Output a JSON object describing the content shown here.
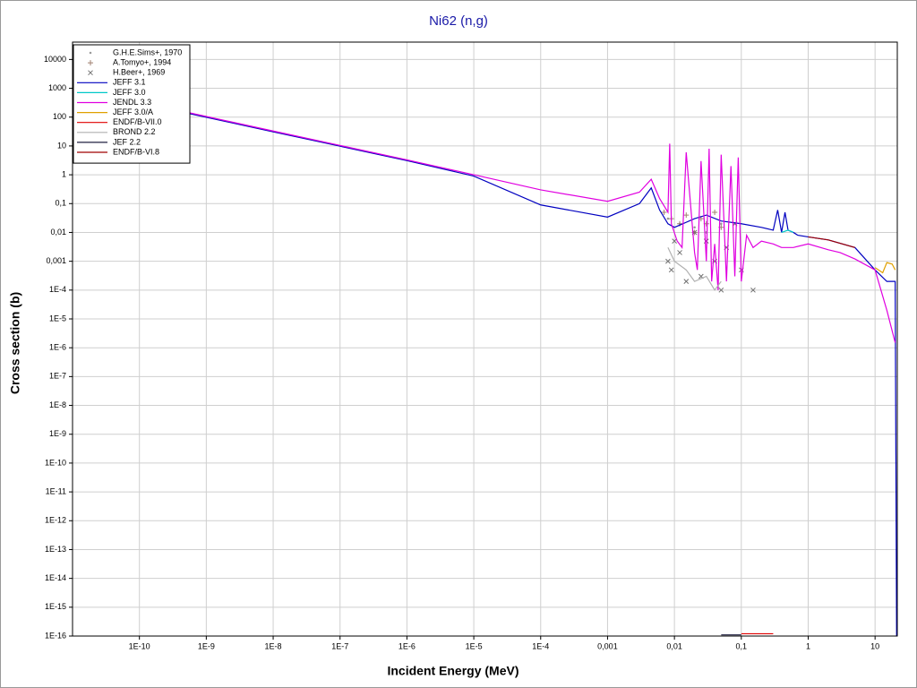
{
  "chart_data": {
    "type": "line",
    "title": "Ni62 (n,g)",
    "x_label": "Incident Energy (MeV)",
    "y_label": "Cross section (b)",
    "log_x": true,
    "log_y": true,
    "grid": true,
    "legend": "upper left",
    "xlim": [
      1e-11,
      21.5
    ],
    "ylim": [
      1e-16,
      40000
    ],
    "xticks": [
      {
        "value": 1e-10,
        "label": "1E-10"
      },
      {
        "value": 1e-09,
        "label": "1E-9"
      },
      {
        "value": 1e-08,
        "label": "1E-8"
      },
      {
        "value": 1e-07,
        "label": "1E-7"
      },
      {
        "value": 1e-06,
        "label": "1E-6"
      },
      {
        "value": 1e-05,
        "label": "1E-5"
      },
      {
        "value": 0.0001,
        "label": "1E-4"
      },
      {
        "value": 0.001,
        "label": "0,001"
      },
      {
        "value": 0.01,
        "label": "0,01"
      },
      {
        "value": 0.1,
        "label": "0,1"
      },
      1,
      10
    ],
    "yticks": [
      10000,
      1000,
      100,
      10,
      1,
      {
        "value": 0.1,
        "label": "0,1"
      },
      {
        "value": 0.01,
        "label": "0,01"
      },
      {
        "value": 0.001,
        "label": "0,001"
      },
      {
        "value": 0.0001,
        "label": "1E-4"
      },
      {
        "value": 1e-05,
        "label": "1E-5"
      },
      {
        "value": 1e-06,
        "label": "1E-6"
      },
      {
        "value": 1e-07,
        "label": "1E-7"
      },
      {
        "value": 1e-08,
        "label": "1E-8"
      },
      {
        "value": 1e-09,
        "label": "1E-9"
      },
      {
        "value": 1e-10,
        "label": "1E-10"
      },
      {
        "value": 1e-11,
        "label": "1E-11"
      },
      {
        "value": 1e-12,
        "label": "1E-12"
      },
      {
        "value": 1e-13,
        "label": "1E-13"
      },
      {
        "value": 1e-14,
        "label": "1E-14"
      },
      {
        "value": 1e-15,
        "label": "1E-15"
      },
      {
        "value": 1e-16,
        "label": "1E-16"
      }
    ],
    "series": [
      {
        "name": "G.H.E.Sims+, 1970",
        "color": "#999999",
        "marker": "dot",
        "x": [
          0.008,
          0.012,
          0.02,
          0.03,
          0.05
        ],
        "values": [
          0.03,
          0.02,
          0.015,
          0.01,
          0.02
        ]
      },
      {
        "name": "A.Tomyo+, 1994",
        "color": "#a08070",
        "marker": "plus",
        "x": [
          0.007,
          0.009,
          0.012,
          0.015,
          0.02,
          0.025,
          0.03,
          0.04,
          0.05
        ],
        "values": [
          0.05,
          0.03,
          0.02,
          0.04,
          0.01,
          0.03,
          0.02,
          0.05,
          0.015
        ]
      },
      {
        "name": "H.Beer+, 1969",
        "color": "#707070",
        "marker": "cross",
        "x": [
          0.008,
          0.009,
          0.01,
          0.012,
          0.015,
          0.02,
          0.025,
          0.03,
          0.04,
          0.05,
          0.06,
          0.08,
          0.1,
          0.15
        ],
        "values": [
          0.001,
          0.0005,
          0.005,
          0.002,
          0.0002,
          0.01,
          0.0003,
          0.005,
          0.001,
          0.0001,
          0.003,
          0.02,
          0.0005,
          0.0001
        ]
      },
      {
        "name": "JEFF 3.1",
        "color": "#0000c0",
        "x": [
          5e-10,
          1e-08,
          1e-06,
          1e-05,
          0.0001,
          0.001,
          0.003,
          0.0045,
          0.006,
          0.008,
          0.01,
          0.02,
          0.03,
          0.05,
          0.1,
          0.2,
          0.3,
          0.35,
          0.4,
          0.45,
          0.5,
          0.6,
          0.7,
          1,
          2,
          5,
          10,
          15,
          20,
          21
        ],
        "values": [
          140,
          31,
          3.1,
          0.9,
          0.09,
          0.034,
          0.1,
          0.35,
          0.06,
          0.02,
          0.015,
          0.03,
          0.04,
          0.025,
          0.02,
          0.015,
          0.012,
          0.06,
          0.01,
          0.05,
          0.012,
          0.01,
          0.008,
          0.007,
          0.0055,
          0.003,
          0.0005,
          0.0002,
          0.0002,
          1e-16
        ]
      },
      {
        "name": "JEFF 3.0",
        "color": "#00c8c8",
        "x": [
          0.4,
          0.5,
          0.6
        ],
        "values": [
          0.01,
          0.012,
          0.01
        ]
      },
      {
        "name": "JENDL 3.3",
        "color": "#e000e0",
        "x": [
          5e-10,
          1e-08,
          1e-06,
          1e-05,
          0.0001,
          0.001,
          0.003,
          0.0045,
          0.006,
          0.008,
          0.0085,
          0.009,
          0.011,
          0.013,
          0.015,
          0.02,
          0.022,
          0.025,
          0.03,
          0.033,
          0.036,
          0.04,
          0.045,
          0.05,
          0.06,
          0.07,
          0.08,
          0.09,
          0.1,
          0.12,
          0.15,
          0.2,
          0.3,
          0.4,
          0.6,
          1,
          2,
          3,
          5,
          10,
          15,
          20
        ],
        "values": [
          150,
          33,
          3.3,
          1.0,
          0.3,
          0.12,
          0.25,
          0.7,
          0.15,
          0.05,
          12,
          0.02,
          0.005,
          0.003,
          6,
          0.002,
          0.0005,
          3,
          0.001,
          8,
          0.0002,
          0.004,
          0.0001,
          5,
          0.0002,
          2,
          0.0003,
          4,
          0.0002,
          0.008,
          0.003,
          0.005,
          0.004,
          0.003,
          0.003,
          0.004,
          0.0025,
          0.002,
          0.0012,
          0.0005,
          2e-05,
          1.5e-06
        ]
      },
      {
        "name": "JEFF 3.0/A",
        "color": "#e0a000",
        "x": [
          10,
          13,
          15,
          18,
          20
        ],
        "values": [
          0.0006,
          0.0004,
          0.0009,
          0.0008,
          0.0005
        ]
      },
      {
        "name": "ENDF/B-VII.0",
        "color": "#e00000",
        "x": [
          0.1,
          0.15,
          0.2,
          0.3
        ],
        "values": [
          1.2e-16,
          1.2e-16,
          1.2e-16,
          1.2e-16
        ]
      },
      {
        "name": "BROND 2.2",
        "color": "#b0b0b0",
        "x": [
          0.008,
          0.01,
          0.015,
          0.02,
          0.03,
          0.04,
          0.05
        ],
        "values": [
          0.003,
          0.001,
          0.0005,
          0.0002,
          0.0003,
          0.0001,
          0.0002
        ]
      },
      {
        "name": "JEF 2.2",
        "color": "#202040",
        "x": [
          0.05,
          0.08,
          0.1
        ],
        "values": [
          1.1e-16,
          1.1e-16,
          1.1e-16
        ]
      },
      {
        "name": "ENDF/B-VI.8",
        "color": "#a00000",
        "x": [
          1,
          2,
          5
        ],
        "values": [
          0.007,
          0.0055,
          0.003
        ]
      }
    ]
  }
}
